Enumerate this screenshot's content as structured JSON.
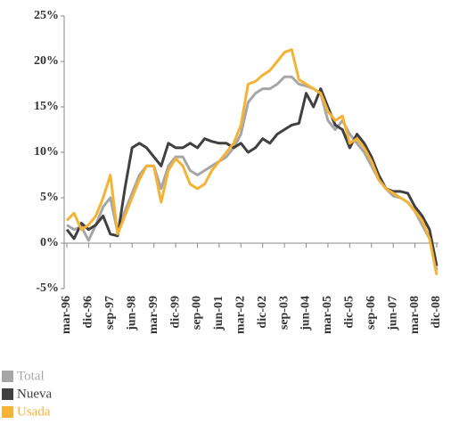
{
  "chart_data": {
    "type": "line",
    "categories": [
      "mar-96",
      null,
      null,
      "dic-96",
      null,
      null,
      "sep-97",
      null,
      null,
      "jun-98",
      null,
      null,
      "mar-99",
      null,
      null,
      "dic-99",
      null,
      null,
      "sep-00",
      null,
      null,
      "jun-01",
      null,
      null,
      "mar-02",
      null,
      null,
      "dic-02",
      null,
      null,
      "sep-03",
      null,
      null,
      "jun-04",
      null,
      null,
      "mar-05",
      null,
      null,
      "dic-05",
      null,
      null,
      "sep-06",
      null,
      null,
      "jun-07",
      null,
      null,
      "mar-08",
      null,
      null,
      "dic-08"
    ],
    "series": [
      {
        "name": "Total",
        "color": "#a6a6a6",
        "values": [
          2,
          1.5,
          1.8,
          0.3,
          2,
          4,
          5,
          1.2,
          3.5,
          5.5,
          7.5,
          8.5,
          8.5,
          6,
          8.5,
          9.5,
          9.5,
          8,
          7.5,
          8,
          8.5,
          9,
          9.5,
          10.5,
          12,
          15.5,
          16.5,
          17,
          17,
          17.5,
          18.3,
          18.3,
          17.5,
          17.3,
          17,
          16.5,
          13.5,
          12.5,
          13.5,
          12,
          11,
          10,
          8.5,
          7,
          6,
          5.2,
          5,
          4.5,
          3.5,
          2,
          0.5,
          -3
        ]
      },
      {
        "name": "Nueva",
        "color": "#404040",
        "values": [
          1.5,
          0.5,
          2.2,
          1.5,
          2,
          3,
          1,
          0.8,
          6,
          10.5,
          11,
          10.5,
          9.5,
          8.5,
          11,
          10.5,
          10.5,
          11,
          10.5,
          11.5,
          11.2,
          11,
          11,
          10.5,
          11,
          10,
          10.5,
          11.5,
          11,
          12,
          12.5,
          13,
          13.2,
          16.5,
          15,
          17,
          15,
          13,
          12.5,
          10.5,
          12,
          11,
          9.5,
          7.5,
          6,
          5.7,
          5.7,
          5.5,
          4,
          3,
          1.5,
          -2.5
        ]
      },
      {
        "name": "Usada",
        "color": "#f5b335",
        "values": [
          2.5,
          3.3,
          1.5,
          2,
          3,
          5,
          7.5,
          1,
          3,
          5,
          7,
          8.5,
          8.5,
          4.5,
          8,
          9.3,
          8.5,
          6.5,
          6,
          6.5,
          8,
          9,
          10,
          11,
          13,
          17.5,
          17.8,
          18.5,
          19,
          20,
          21,
          21.3,
          18,
          17.5,
          17,
          16.5,
          14.5,
          13.5,
          14,
          11,
          11.5,
          10.5,
          9,
          7,
          6,
          5.5,
          5,
          4.5,
          3.5,
          2.5,
          0.5,
          -3.5
        ]
      }
    ],
    "ylim": [
      -5,
      25
    ],
    "yticks": [
      {
        "value": -5,
        "label": "-5%"
      },
      {
        "value": 0,
        "label": "0%"
      },
      {
        "value": 5,
        "label": "5%"
      },
      {
        "value": 10,
        "label": "10%"
      },
      {
        "value": 15,
        "label": "15%"
      },
      {
        "value": 20,
        "label": "20%"
      },
      {
        "value": 25,
        "label": "25%"
      }
    ],
    "grid": false
  }
}
